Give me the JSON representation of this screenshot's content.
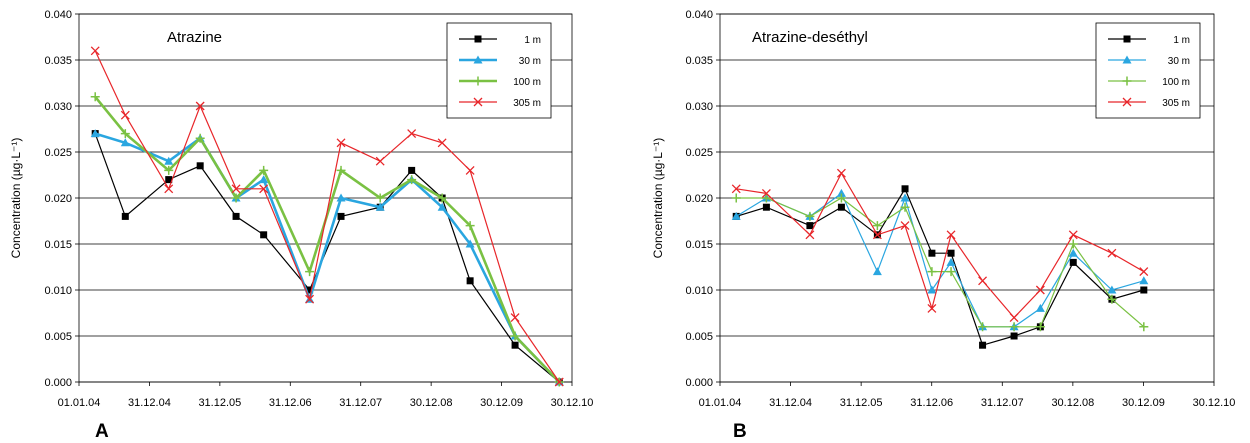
{
  "panel_labels": [
    "A",
    "B"
  ],
  "colors": {
    "1 m": "#000000",
    "30 m": "#2aa6e0",
    "100 m": "#7ac143",
    "305 m": "#e8262a"
  },
  "chart_data": [
    {
      "type": "line",
      "title": "Atrazine",
      "ylabel": "Concentration (µg·L⁻¹)",
      "xlabel": "",
      "x_tick_labels": [
        "01.01.04",
        "31.12.04",
        "31.12.05",
        "31.12.06",
        "31.12.07",
        "30.12.08",
        "30.12.09",
        "30.12.10"
      ],
      "xlim": [
        "2004-01-01",
        "2010-12-30"
      ],
      "ylim": [
        0,
        0.04
      ],
      "y_ticks": [
        "0.000",
        "0.005",
        "0.010",
        "0.015",
        "0.020",
        "0.025",
        "0.030",
        "0.035",
        "0.040"
      ],
      "grid": "horizontal",
      "legend": "top-right",
      "series": [
        {
          "name": "1 m",
          "marker": "square",
          "color": "#000000",
          "x": [
            "2004-03-25",
            "2004-08-28",
            "2005-04-10",
            "2005-09-20",
            "2006-03-25",
            "2006-08-15",
            "2007-04-10",
            "2007-09-20",
            "2008-04-10",
            "2008-09-20",
            "2009-02-25",
            "2009-07-20",
            "2010-03-10",
            "2010-10-25"
          ],
          "y": [
            0.027,
            0.018,
            0.022,
            0.0235,
            0.018,
            0.016,
            0.01,
            0.018,
            0.019,
            0.023,
            0.02,
            0.011,
            0.004,
            0.0
          ]
        },
        {
          "name": "30 m",
          "marker": "triangle",
          "color": "#2aa6e0",
          "x": [
            "2004-03-25",
            "2004-08-28",
            "2005-04-10",
            "2005-09-20",
            "2006-03-25",
            "2006-08-15",
            "2007-04-10",
            "2007-09-20",
            "2008-04-10",
            "2008-09-20",
            "2009-02-25",
            "2009-07-20",
            "2010-03-10",
            "2010-10-25"
          ],
          "y": [
            0.027,
            0.026,
            0.024,
            0.0265,
            0.02,
            0.022,
            0.009,
            0.02,
            0.019,
            0.022,
            0.019,
            0.015,
            0.005,
            0.0
          ]
        },
        {
          "name": "100 m",
          "marker": "plus",
          "color": "#7ac143",
          "x": [
            "2004-03-25",
            "2004-08-28",
            "2005-04-10",
            "2005-09-20",
            "2006-03-25",
            "2006-08-15",
            "2007-04-10",
            "2007-09-20",
            "2008-04-10",
            "2008-09-20",
            "2009-02-25",
            "2009-07-20",
            "2010-03-10",
            "2010-10-25"
          ],
          "y": [
            0.031,
            0.027,
            0.023,
            0.0265,
            0.02,
            0.023,
            0.012,
            0.023,
            0.02,
            0.022,
            0.02,
            0.017,
            0.005,
            0.0
          ]
        },
        {
          "name": "305 m",
          "marker": "x",
          "color": "#e8262a",
          "x": [
            "2004-03-25",
            "2004-08-28",
            "2005-04-10",
            "2005-09-20",
            "2006-03-25",
            "2006-08-15",
            "2007-04-10",
            "2007-09-20",
            "2008-04-10",
            "2008-09-20",
            "2009-02-25",
            "2009-07-20",
            "2010-03-10",
            "2010-10-25"
          ],
          "y": [
            0.036,
            0.029,
            0.021,
            0.03,
            0.021,
            0.021,
            0.009,
            0.026,
            0.024,
            0.027,
            0.026,
            0.023,
            0.007,
            0.0
          ]
        }
      ]
    },
    {
      "type": "line",
      "title": "Atrazine-deséthyl",
      "ylabel": "Concentration (µg·L⁻¹)",
      "xlabel": "",
      "x_tick_labels": [
        "01.01.04",
        "31.12.04",
        "31.12.05",
        "31.12.06",
        "31.12.07",
        "30.12.08",
        "30.12.09",
        "30.12.10"
      ],
      "xlim": [
        "2004-01-01",
        "2010-12-30"
      ],
      "ylim": [
        0,
        0.04
      ],
      "y_ticks": [
        "0.000",
        "0.005",
        "0.010",
        "0.015",
        "0.020",
        "0.025",
        "0.030",
        "0.035",
        "0.040"
      ],
      "grid": "horizontal",
      "legend": "top-right",
      "series": [
        {
          "name": "1 m",
          "marker": "square",
          "color": "#000000",
          "x": [
            "2004-03-25",
            "2004-08-28",
            "2005-04-10",
            "2005-09-20",
            "2006-03-25",
            "2006-08-15",
            "2007-01-01",
            "2007-04-10",
            "2007-09-20",
            "2008-03-01",
            "2008-07-15",
            "2009-01-01",
            "2009-07-20",
            "2010-01-01"
          ],
          "y": [
            0.018,
            0.019,
            0.017,
            0.019,
            0.016,
            0.021,
            0.014,
            0.014,
            0.004,
            0.005,
            0.006,
            0.013,
            0.009,
            0.01
          ]
        },
        {
          "name": "30 m",
          "marker": "triangle",
          "color": "#2aa6e0",
          "x": [
            "2004-03-25",
            "2004-08-28",
            "2005-04-10",
            "2005-09-20",
            "2006-03-25",
            "2006-08-15",
            "2007-01-01",
            "2007-04-10",
            "2007-09-20",
            "2008-03-01",
            "2008-07-15",
            "2009-01-01",
            "2009-07-20",
            "2010-01-01"
          ],
          "y": [
            0.018,
            0.02,
            0.018,
            0.0205,
            0.012,
            0.02,
            0.01,
            0.013,
            0.006,
            0.006,
            0.008,
            0.014,
            0.01,
            0.011
          ]
        },
        {
          "name": "100 m",
          "marker": "plus",
          "color": "#7ac143",
          "x": [
            "2004-03-25",
            "2004-08-28",
            "2005-04-10",
            "2005-09-20",
            "2006-03-25",
            "2006-08-15",
            "2007-01-01",
            "2007-04-10",
            "2007-09-20",
            "2008-03-01",
            "2008-07-15",
            "2009-01-01",
            "2009-07-20",
            "2010-01-01"
          ],
          "y": [
            0.02,
            0.02,
            0.018,
            0.02,
            0.017,
            0.019,
            0.012,
            0.012,
            0.006,
            0.006,
            0.006,
            0.015,
            0.009,
            0.006
          ]
        },
        {
          "name": "305 m",
          "marker": "x",
          "color": "#e8262a",
          "x": [
            "2004-03-25",
            "2004-08-28",
            "2005-04-10",
            "2005-09-20",
            "2006-03-25",
            "2006-08-15",
            "2007-01-01",
            "2007-04-10",
            "2007-09-20",
            "2008-03-01",
            "2008-07-15",
            "2009-01-01",
            "2009-07-20",
            "2010-01-01"
          ],
          "y": [
            0.021,
            0.0205,
            0.016,
            0.0227,
            0.016,
            0.017,
            0.008,
            0.016,
            0.011,
            0.007,
            0.01,
            0.016,
            0.014,
            0.012
          ]
        }
      ]
    }
  ]
}
